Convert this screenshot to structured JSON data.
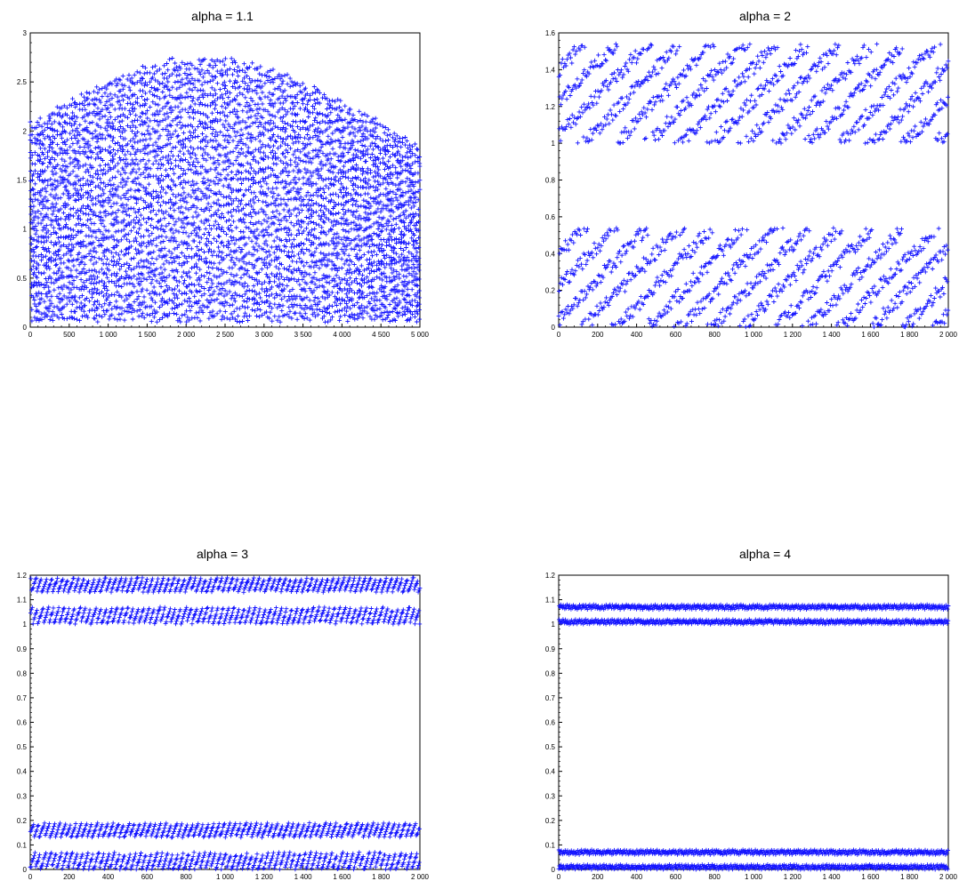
{
  "chart_data": [
    {
      "type": "scatter",
      "title": "alpha = 1.1",
      "alpha": 1.1,
      "marker": "+",
      "color": "#1515ff",
      "n_points": 5000,
      "xlim": [
        0,
        5000
      ],
      "ylim": [
        0,
        3
      ],
      "x_ticks": [
        0,
        500,
        1000,
        1500,
        2000,
        2500,
        3000,
        3500,
        4000,
        4500,
        5000
      ],
      "x_tick_labels": [
        "0",
        "500",
        "1 000",
        "1 500",
        "2 000",
        "2 500",
        "3 000",
        "3 500",
        "4 000",
        "4 500",
        "5 000"
      ],
      "y_ticks": [
        0,
        0.5,
        1,
        1.5,
        2,
        2.5,
        3
      ],
      "y_tick_labels": [
        "0",
        "0.5",
        "1",
        "1.5",
        "2",
        "2.5",
        "3"
      ],
      "y_range_observed": [
        0.05,
        2.75
      ],
      "pattern": "dense diagonal striped bands descending across the full range",
      "grid": false,
      "legend": "none"
    },
    {
      "type": "scatter",
      "title": "alpha = 2",
      "alpha": 2,
      "marker": "+",
      "color": "#1515ff",
      "n_points": 2000,
      "xlim": [
        0,
        2000
      ],
      "ylim": [
        0,
        1.6
      ],
      "x_ticks": [
        0,
        200,
        400,
        600,
        800,
        1000,
        1200,
        1400,
        1600,
        1800,
        2000
      ],
      "x_tick_labels": [
        "0",
        "200",
        "400",
        "600",
        "800",
        "1 000",
        "1 200",
        "1 400",
        "1 600",
        "1 800",
        "2 000"
      ],
      "y_ticks": [
        0,
        0.2,
        0.4,
        0.6,
        0.8,
        1,
        1.2,
        1.4,
        1.6
      ],
      "y_tick_labels": [
        "0",
        "0.2",
        "0.4",
        "0.6",
        "0.8",
        "1",
        "1.2",
        "1.4",
        "1.6"
      ],
      "bands": [
        [
          0.0,
          0.54
        ],
        [
          1.0,
          1.54
        ]
      ],
      "grid": false,
      "legend": "none"
    },
    {
      "type": "scatter",
      "title": "alpha = 3",
      "alpha": 3,
      "marker": "+",
      "color": "#1515ff",
      "n_points": 2000,
      "xlim": [
        0,
        2000
      ],
      "ylim": [
        0,
        1.2
      ],
      "x_ticks": [
        0,
        200,
        400,
        600,
        800,
        1000,
        1200,
        1400,
        1600,
        1800,
        2000
      ],
      "x_tick_labels": [
        "0",
        "200",
        "400",
        "600",
        "800",
        "1 000",
        "1 200",
        "1 400",
        "1 600",
        "1 800",
        "2 000"
      ],
      "y_ticks": [
        0,
        0.1,
        0.2,
        0.3,
        0.4,
        0.5,
        0.6,
        0.7,
        0.8,
        0.9,
        1,
        1.1,
        1.2
      ],
      "y_tick_labels": [
        "0",
        "0.1",
        "0.2",
        "0.3",
        "0.4",
        "0.5",
        "0.6",
        "0.7",
        "0.8",
        "0.9",
        "1",
        "1.1",
        "1.2"
      ],
      "bands": [
        [
          0.0,
          0.07
        ],
        [
          0.13,
          0.19
        ],
        [
          1.0,
          1.07
        ],
        [
          1.13,
          1.19
        ]
      ],
      "grid": false,
      "legend": "none"
    },
    {
      "type": "scatter",
      "title": "alpha = 4",
      "alpha": 4,
      "marker": "+",
      "color": "#1515ff",
      "n_points": 2000,
      "xlim": [
        0,
        2000
      ],
      "ylim": [
        0,
        1.2
      ],
      "x_ticks": [
        0,
        200,
        400,
        600,
        800,
        1000,
        1200,
        1400,
        1600,
        1800,
        2000
      ],
      "x_tick_labels": [
        "0",
        "200",
        "400",
        "600",
        "800",
        "1 000",
        "1 200",
        "1 400",
        "1 600",
        "1 800",
        "2 000"
      ],
      "y_ticks": [
        0,
        0.1,
        0.2,
        0.3,
        0.4,
        0.5,
        0.6,
        0.7,
        0.8,
        0.9,
        1,
        1.1,
        1.2
      ],
      "y_tick_labels": [
        "0",
        "0.1",
        "0.2",
        "0.3",
        "0.4",
        "0.5",
        "0.6",
        "0.7",
        "0.8",
        "0.9",
        "1",
        "1.1",
        "1.2"
      ],
      "bands": [
        [
          0.0,
          0.02
        ],
        [
          0.06,
          0.08
        ],
        [
          1.0,
          1.02
        ],
        [
          1.06,
          1.08
        ]
      ],
      "grid": false,
      "legend": "none"
    }
  ]
}
